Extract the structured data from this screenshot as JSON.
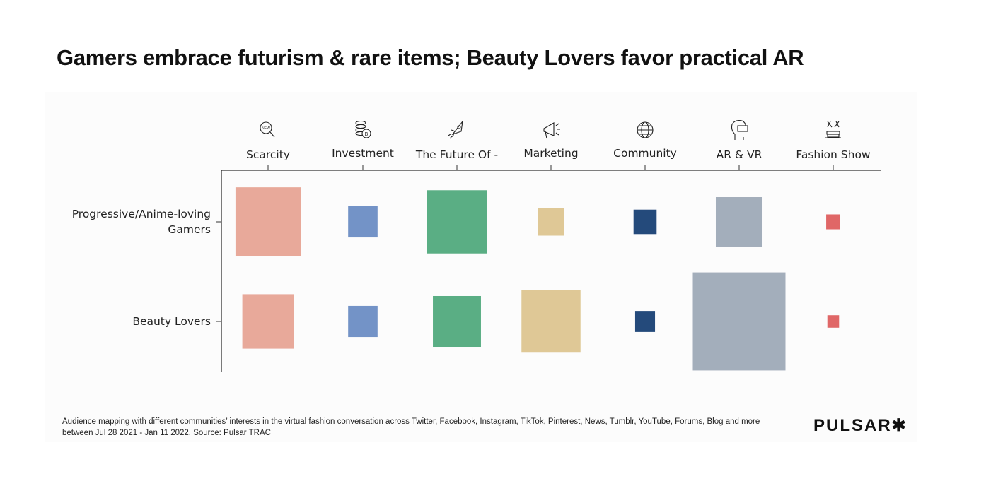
{
  "title": "Gamers embrace futurism & rare items; Beauty Lovers favor practical AR",
  "chart_data": {
    "type": "heatmap",
    "encoding": "square area",
    "categories": [
      "Scarcity",
      "Investment",
      "The Future Of -",
      "Marketing",
      "Community",
      "AR & VR",
      "Fashion Show"
    ],
    "icons": [
      "new-magnifier-icon",
      "coin-stack-bitcoin-icon",
      "rocket-icon",
      "megaphone-icon",
      "globe-icon",
      "vr-headset-icon",
      "sewing-machine-icon"
    ],
    "colors": [
      "#E8A99A",
      "#7393C7",
      "#5AAE84",
      "#DFC896",
      "#244A7B",
      "#A3AEBB",
      "#E06767"
    ],
    "rows": [
      "Progressive/Anime-loving Gamers",
      "Beauty Lovers"
    ],
    "series": [
      {
        "name": "Progressive/Anime-loving Gamers",
        "values": [
          49.5,
          10.1,
          41.5,
          7.9,
          6.2,
          25.4,
          2.3
        ]
      },
      {
        "name": "Beauty Lovers",
        "values": [
          30.9,
          10.1,
          26.9,
          40.6,
          4.6,
          100,
          1.6
        ]
      }
    ],
    "legend": "none",
    "grid": false
  },
  "footer": {
    "note": "Audience mapping with different communities’ interests in the virtual fashion conversation across Twitter, Facebook, Instagram, TikTok, Pinterest, News, Tumblr, YouTube, Forums, Blog and more between Jul 28 2021 - Jan 11 2022. Source: Pulsar  TRAC",
    "logo": "PULSAR✱"
  }
}
